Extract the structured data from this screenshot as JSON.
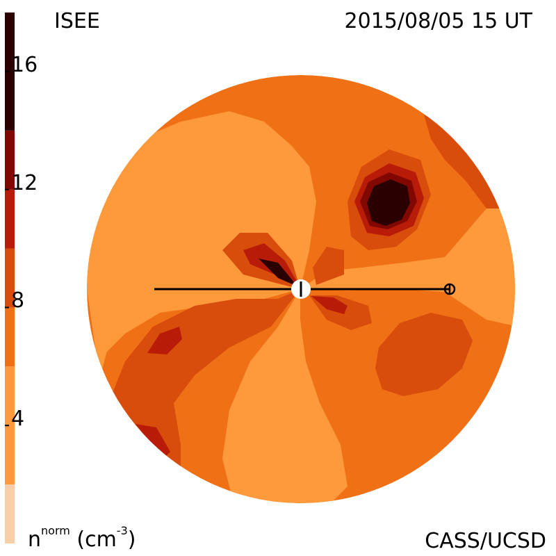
{
  "header": {
    "source": "ISEE",
    "timestamp": "2015/08/05 15 UT"
  },
  "footer": {
    "credit": "CASS/UCSD",
    "unit_symbol": "n",
    "unit_sup": "norm",
    "unit_text": "(cm",
    "unit_exp": "-3",
    "unit_close": ")"
  },
  "colorbar": {
    "ticks": [
      "16",
      "12",
      "8",
      "4"
    ],
    "tick_values": [
      16,
      12,
      8,
      4
    ],
    "range": [
      0,
      18
    ],
    "bands": [
      {
        "from": 0,
        "to": 2,
        "color": "#f8cfa8"
      },
      {
        "from": 2,
        "to": 6,
        "color": "#ff9a3c"
      },
      {
        "from": 6,
        "to": 8,
        "color": "#f07016"
      },
      {
        "from": 8,
        "to": 10,
        "color": "#d84c0c"
      },
      {
        "from": 10,
        "to": 12,
        "color": "#b81c08"
      },
      {
        "from": 12,
        "to": 14,
        "color": "#800800"
      },
      {
        "from": 14,
        "to": 18,
        "color": "#2a0000"
      }
    ]
  },
  "map": {
    "background_color": "#f07016",
    "light_color": "#ff9a3c",
    "mid_color": "#d84c0c",
    "dark_color": "#b81c08",
    "darker_color": "#800800",
    "darkest_color": "#2a0000",
    "line_color": "#000000",
    "sun_color": "#ffffff"
  }
}
